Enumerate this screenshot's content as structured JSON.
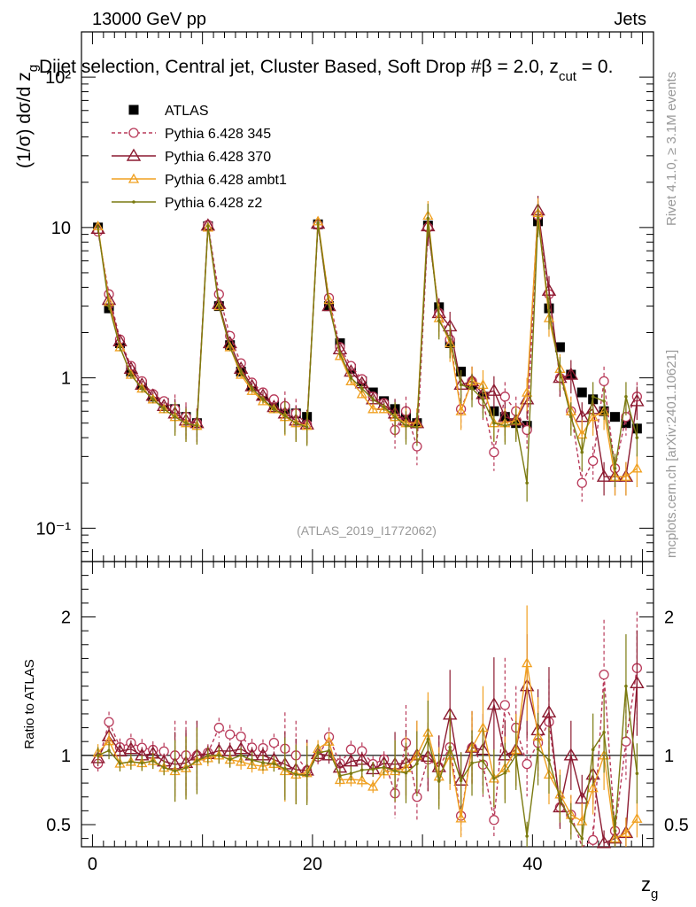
{
  "header": {
    "energy_label": "13000 GeV pp",
    "category_label": "Jets",
    "plot_title": "Dijet selection, Central jet, Cluster Based, Soft Drop #β = 2.0, z",
    "title_sub": "cut",
    "title_tail": " = 0.",
    "side_label_top": "Rivet 4.1.0, ≥ 3.1M events",
    "side_label_bottom": "mcplots.cern.ch [arXiv:2401.10621]",
    "analysis_id": "(ATLAS_2019_I1772062)"
  },
  "chart_data": {
    "type": "scatter",
    "title": "Dijet selection, Central jet, Cluster Based, Soft Drop #β = 2.0, z_cut = 0.",
    "xlabel": "z",
    "xlabel_sub": "g",
    "ylabel": "(1/σ) dσ/d z",
    "ylabel_sub": "g",
    "ratio_ylabel": "Ratio to ATLAS",
    "xlim": [
      -1,
      51
    ],
    "ylim": [
      0.06,
      200
    ],
    "ratio_ylim": [
      0.34,
      2.4
    ],
    "x_ticks": [
      "0",
      "20",
      "40"
    ],
    "y_ticks": [
      "10⁻¹",
      "1",
      "10",
      "10²"
    ],
    "ratio_ticks": [
      "0.5",
      "1",
      "2"
    ],
    "legend_position": "top-left",
    "x": [
      0.5,
      1.5,
      2.5,
      3.5,
      4.5,
      5.5,
      6.5,
      7.5,
      8.5,
      9.5,
      10.5,
      11.5,
      12.5,
      13.5,
      14.5,
      15.5,
      16.5,
      17.5,
      18.5,
      19.5,
      20.5,
      21.5,
      22.5,
      23.5,
      24.5,
      25.5,
      26.5,
      27.5,
      28.5,
      29.5,
      30.5,
      31.5,
      32.5,
      33.5,
      34.5,
      35.5,
      36.5,
      37.5,
      38.5,
      39.5,
      40.5,
      41.5,
      42.5,
      43.5,
      44.5,
      45.5,
      46.5,
      47.5,
      48.5,
      49.5
    ],
    "series": [
      {
        "name": "ATLAS",
        "color": "#000000",
        "marker": "square",
        "values": [
          10.0,
          2.9,
          1.7,
          1.1,
          0.9,
          0.75,
          0.68,
          0.62,
          0.55,
          0.5,
          10.2,
          3.0,
          1.65,
          1.1,
          0.88,
          0.76,
          0.66,
          0.62,
          0.58,
          0.55,
          10.5,
          3.0,
          1.7,
          1.15,
          0.95,
          0.8,
          0.7,
          0.62,
          0.55,
          0.5,
          10.3,
          2.95,
          1.7,
          1.1,
          0.9,
          0.75,
          0.6,
          0.55,
          0.5,
          0.48,
          11.0,
          2.9,
          1.6,
          1.05,
          0.8,
          0.72,
          0.6,
          0.55,
          0.5,
          0.46
        ]
      },
      {
        "name": "Pythia 6.428 345",
        "color": "#b83a5a",
        "marker": "circle",
        "values": [
          9.4,
          3.6,
          1.8,
          1.2,
          0.95,
          0.78,
          0.7,
          0.62,
          0.55,
          0.5,
          10.4,
          3.6,
          1.9,
          1.25,
          0.93,
          0.8,
          0.72,
          0.65,
          0.58,
          0.49,
          10.4,
          3.4,
          1.6,
          1.2,
          0.98,
          0.75,
          0.68,
          0.45,
          0.6,
          0.35,
          10.0,
          2.7,
          1.8,
          0.62,
          0.95,
          0.7,
          0.32,
          0.75,
          0.6,
          0.45,
          12.0,
          3.6,
          1.0,
          0.6,
          0.2,
          0.28,
          0.95,
          0.25,
          0.55,
          0.75
        ]
      },
      {
        "name": "Pythia 6.428 370",
        "color": "#8b1a30",
        "marker": "triangle",
        "values": [
          9.8,
          3.3,
          1.75,
          1.15,
          0.9,
          0.76,
          0.65,
          0.58,
          0.52,
          0.5,
          10.3,
          3.1,
          1.7,
          1.15,
          0.88,
          0.76,
          0.64,
          0.58,
          0.52,
          0.49,
          10.6,
          3.0,
          1.55,
          1.1,
          0.92,
          0.72,
          0.66,
          0.58,
          0.52,
          0.5,
          10.2,
          2.7,
          2.2,
          0.9,
          0.95,
          0.78,
          0.82,
          0.55,
          0.52,
          0.72,
          13.0,
          3.8,
          1.0,
          1.05,
          0.55,
          0.62,
          0.22,
          0.22,
          0.22,
          0.7
        ]
      },
      {
        "name": "Pythia 6.428 ambt1",
        "color": "#f0a020",
        "marker": "triangle-open",
        "values": [
          10.2,
          3.2,
          1.6,
          1.05,
          0.85,
          0.72,
          0.62,
          0.55,
          0.5,
          0.48,
          10.0,
          3.0,
          1.6,
          1.05,
          0.82,
          0.7,
          0.62,
          0.55,
          0.5,
          0.48,
          11.0,
          3.3,
          1.4,
          0.95,
          0.78,
          0.62,
          0.62,
          0.55,
          0.5,
          0.5,
          12.0,
          2.5,
          1.7,
          0.6,
          0.95,
          0.9,
          0.5,
          0.5,
          0.52,
          0.8,
          12.5,
          2.5,
          1.15,
          0.6,
          0.42,
          0.55,
          0.6,
          0.22,
          0.22,
          0.25
        ]
      },
      {
        "name": "Pythia 6.428 z2",
        "color": "#7a7a10",
        "marker": "dot",
        "values": [
          10.0,
          3.0,
          1.6,
          1.05,
          0.85,
          0.72,
          0.62,
          0.55,
          0.5,
          0.48,
          10.2,
          3.0,
          1.6,
          1.1,
          0.85,
          0.72,
          0.62,
          0.56,
          0.5,
          0.47,
          10.7,
          3.1,
          1.45,
          1.0,
          0.85,
          0.72,
          0.64,
          0.55,
          0.48,
          0.47,
          11.5,
          2.4,
          1.8,
          0.9,
          0.85,
          0.72,
          0.5,
          0.48,
          0.5,
          0.2,
          11.5,
          2.8,
          1.1,
          0.55,
          0.32,
          0.75,
          0.7,
          0.25,
          0.75,
          0.4
        ]
      }
    ],
    "legend": [
      "ATLAS",
      "Pythia 6.428 345",
      "Pythia 6.428 370",
      "Pythia 6.428 ambt1",
      "Pythia 6.428 z2"
    ]
  }
}
